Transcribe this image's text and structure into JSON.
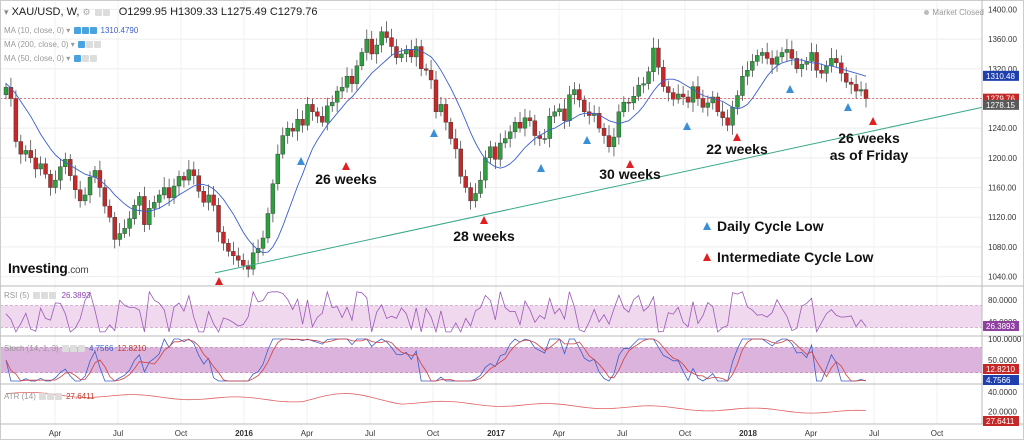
{
  "header": {
    "symbol": "XAU/USD, W,",
    "open": "O1299.95",
    "high": "H1309.33",
    "low": "L1275.49",
    "close": "C1279.76",
    "market_status": "Market Closed"
  },
  "indicators": {
    "ma10": {
      "label": "MA (10, close, 0)",
      "value": "1310.4790"
    },
    "ma200": {
      "label": "MA (200, close, 0)"
    },
    "ma50": {
      "label": "MA (50, close, 0)"
    },
    "rsi": {
      "label": "RSI (5)",
      "value": "26.3893"
    },
    "stoch": {
      "label": "Stoch (14, 1, 3)",
      "value1": "4.7566",
      "value2": "12.8210"
    },
    "atr": {
      "label": "ATR (14)",
      "value": "27.6411"
    }
  },
  "logo": {
    "main": "Investing",
    "suffix": ".com"
  },
  "colors": {
    "up": "#2e9e3e",
    "down": "#c42828",
    "ma": "#3a5fcd",
    "trendline": "#3aa88a",
    "daily_marker": "#3a8fd6",
    "intermediate_marker": "#e02020",
    "rsi_band": "#f0d8ef",
    "stoch_band": "#dcb3dc"
  },
  "chart_data": {
    "type": "candlestick",
    "y_axis": {
      "ticks": [
        "1400.00",
        "1360.00",
        "1320.00",
        "1280.00",
        "1240.00",
        "1200.00",
        "1160.00",
        "1120.00",
        "1080.00",
        "1040.00"
      ],
      "range": [
        1030,
        1410
      ]
    },
    "x_axis": {
      "ticks": [
        "Apr",
        "Jul",
        "Oct",
        "2016",
        "Apr",
        "Jul",
        "Oct",
        "2017",
        "Apr",
        "Jul",
        "Oct",
        "2018",
        "Apr",
        "Jul",
        "Oct"
      ]
    },
    "price_tags": [
      {
        "text": "1310.48",
        "value": 1310.48,
        "color": "#1e3fae"
      },
      {
        "text": "1279.76",
        "value": 1279.76,
        "color": "#c62828"
      },
      {
        "text": "1278.15",
        "value": 1278.15,
        "color": "#5a5a5a"
      }
    ],
    "closes": [
      1295,
      1280,
      1222,
      1205,
      1210,
      1200,
      1185,
      1192,
      1178,
      1160,
      1170,
      1188,
      1198,
      1176,
      1157,
      1142,
      1150,
      1174,
      1183,
      1160,
      1135,
      1120,
      1090,
      1098,
      1105,
      1118,
      1136,
      1148,
      1110,
      1132,
      1140,
      1150,
      1160,
      1146,
      1162,
      1175,
      1170,
      1184,
      1176,
      1155,
      1140,
      1150,
      1136,
      1100,
      1085,
      1074,
      1068,
      1062,
      1055,
      1050,
      1072,
      1078,
      1092,
      1125,
      1165,
      1205,
      1230,
      1240,
      1236,
      1252,
      1244,
      1272,
      1262,
      1256,
      1248,
      1270,
      1275,
      1290,
      1295,
      1310,
      1300,
      1324,
      1342,
      1360,
      1340,
      1352,
      1370,
      1362,
      1350,
      1335,
      1340,
      1346,
      1336,
      1350,
      1320,
      1318,
      1305,
      1262,
      1272,
      1248,
      1226,
      1212,
      1175,
      1160,
      1142,
      1152,
      1170,
      1200,
      1215,
      1198,
      1220,
      1226,
      1235,
      1248,
      1240,
      1254,
      1250,
      1230,
      1226,
      1226,
      1256,
      1262,
      1266,
      1250,
      1285,
      1292,
      1278,
      1262,
      1257,
      1260,
      1240,
      1230,
      1215,
      1228,
      1262,
      1275,
      1274,
      1283,
      1298,
      1300,
      1316,
      1348,
      1322,
      1296,
      1288,
      1279,
      1286,
      1282,
      1275,
      1296,
      1280,
      1268,
      1274,
      1282,
      1262,
      1254,
      1244,
      1268,
      1284,
      1310,
      1318,
      1330,
      1338,
      1342,
      1334,
      1326,
      1336,
      1342,
      1346,
      1334,
      1320,
      1326,
      1330,
      1342,
      1318,
      1314,
      1324,
      1334,
      1328,
      1314,
      1302,
      1299,
      1290,
      1292,
      1280
    ],
    "ma10": [
      1300,
      1294,
      1286,
      1276,
      1266,
      1256,
      1244,
      1232,
      1222,
      1212,
      1204,
      1198,
      1194,
      1190,
      1186,
      1182,
      1178,
      1176,
      1174,
      1170,
      1164,
      1158,
      1150,
      1144,
      1138,
      1133,
      1130,
      1129,
      1128,
      1128,
      1130,
      1132,
      1136,
      1140,
      1145,
      1150,
      1154,
      1158,
      1162,
      1164,
      1164,
      1162,
      1158,
      1152,
      1144,
      1134,
      1124,
      1112,
      1100,
      1090,
      1082,
      1076,
      1072,
      1073,
      1080,
      1092,
      1108,
      1126,
      1144,
      1162,
      1178,
      1196,
      1212,
      1224,
      1234,
      1244,
      1252,
      1260,
      1268,
      1276,
      1282,
      1290,
      1298,
      1306,
      1314,
      1320,
      1326,
      1332,
      1338,
      1342,
      1344,
      1346,
      1346,
      1346,
      1344,
      1340,
      1336,
      1328,
      1318,
      1306,
      1294,
      1280,
      1266,
      1250,
      1234,
      1220,
      1208,
      1198,
      1192,
      1188,
      1186,
      1188,
      1192,
      1198,
      1206,
      1214,
      1220,
      1226,
      1230,
      1234,
      1238,
      1240,
      1244,
      1248,
      1250,
      1254,
      1258,
      1260,
      1260,
      1260,
      1258,
      1254,
      1250,
      1248,
      1246,
      1248,
      1250,
      1256,
      1262,
      1270,
      1280,
      1290,
      1298,
      1304,
      1306,
      1306,
      1304,
      1300,
      1296,
      1292,
      1288,
      1284,
      1282,
      1280,
      1278,
      1276,
      1272,
      1268,
      1266,
      1268,
      1272,
      1280,
      1290,
      1300,
      1310,
      1318,
      1324,
      1328,
      1330,
      1332,
      1332,
      1332,
      1330,
      1328,
      1328,
      1326,
      1324,
      1324,
      1322,
      1320,
      1318,
      1316,
      1314,
      1312,
      1310
    ],
    "rsi": {
      "range": [
        20,
        100
      ],
      "ticks": [
        "80.0000",
        "40.0000"
      ],
      "band": [
        70,
        30
      ]
    },
    "stoch": {
      "range": [
        0,
        100
      ],
      "ticks": [
        "100.0000",
        "50.0000"
      ],
      "band": [
        80,
        20
      ],
      "end_tags": [
        "12.8210",
        "4.7566"
      ]
    },
    "atr": {
      "range": [
        10,
        45
      ],
      "ticks": [
        "40.0000",
        "20.0000"
      ],
      "end_tag": "27.6411"
    },
    "annotations": {
      "cycle_labels": [
        {
          "text": "26 weeks",
          "value": 1161
        },
        {
          "text": "28 weeks",
          "value": 1072
        },
        {
          "text": "30 weeks",
          "value": 1170
        },
        {
          "text": "22 weeks",
          "value": 1208
        },
        {
          "text": "26 weeks",
          "value": 1223
        },
        {
          "text": "as of Friday",
          "value": 1203
        }
      ],
      "trendline": {
        "from": 1045,
        "to": 1268
      }
    },
    "legend": {
      "daily": "Daily Cycle Low",
      "intermediate": "Intermediate Cycle Low"
    }
  }
}
